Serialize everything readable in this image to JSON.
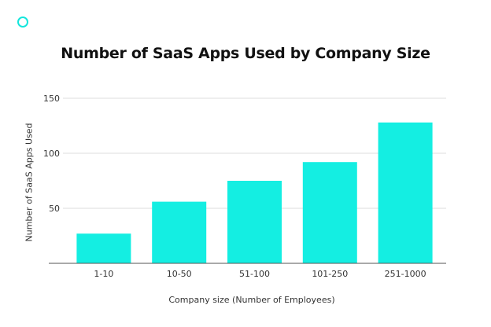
{
  "chart_data": {
    "type": "bar",
    "title": "Number of SaaS Apps Used by Company Size",
    "xlabel": "Company size (Number of Employees)",
    "ylabel": "Number of SaaS Apps Used",
    "categories": [
      "1-10",
      "10-50",
      "51-100",
      "101-250",
      "251-1000"
    ],
    "values": [
      27,
      56,
      75,
      92,
      128
    ],
    "ylim": [
      0,
      150
    ],
    "yticks": [
      50,
      100,
      150
    ],
    "grid": true,
    "bar_color": "#14eee2",
    "logo_color": "#14e6dc"
  }
}
